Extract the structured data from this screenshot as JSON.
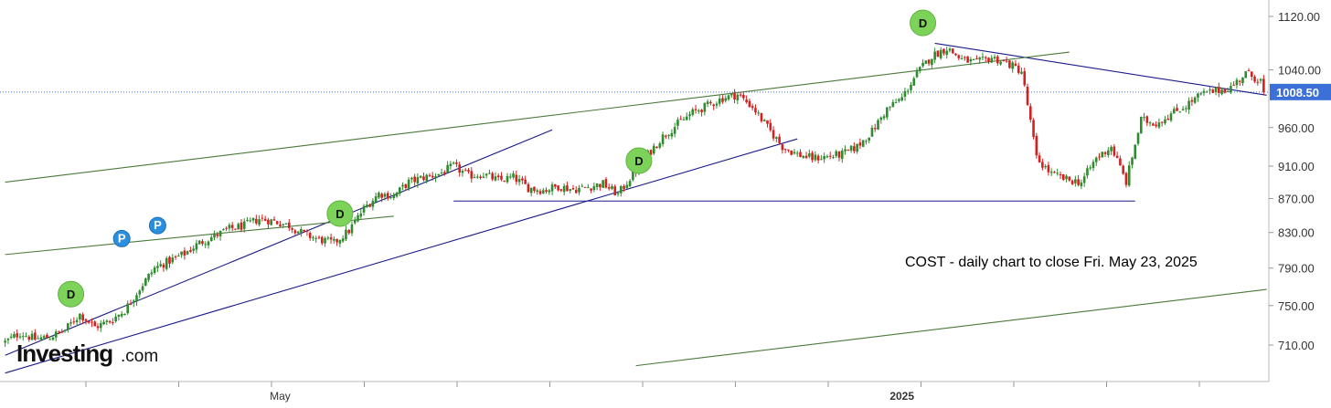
{
  "chart_data": {
    "type": "candlestick",
    "title": "",
    "annotation": "COST - daily chart to close Fri. May 23, 2025",
    "watermark": {
      "main": "Investing",
      "sub": ".com"
    },
    "y_axis": {
      "ylim": [
        675,
        1140
      ],
      "ticks": [
        710,
        750,
        790,
        830,
        870,
        910,
        960,
        1040,
        1120
      ],
      "tick_labels": [
        "710.00",
        "750.00",
        "790.00",
        "830.00",
        "870.00",
        "910.00",
        "960.00",
        "1040.00",
        "1120.00"
      ],
      "scale": "log"
    },
    "x_axis": {
      "labels": [
        {
          "text": "May",
          "bar": 92
        },
        {
          "text": "2025",
          "bar": 300
        }
      ]
    },
    "current_price": {
      "value": 1008.5,
      "label": "1008.50",
      "color": "#3d6fd8"
    },
    "colors": {
      "up": "#2e8b2e",
      "down": "#d62020",
      "trend_blue": "#1b1b8a",
      "channel_green": "#4a7a3a",
      "marker_d": "#7dd35a",
      "marker_p": "#2b8fe0"
    },
    "candle_anchors": [
      [
        0,
        713
      ],
      [
        5,
        722
      ],
      [
        10,
        716
      ],
      [
        15,
        718
      ],
      [
        20,
        725
      ],
      [
        25,
        741
      ],
      [
        30,
        728
      ],
      [
        35,
        734
      ],
      [
        40,
        745
      ],
      [
        45,
        768
      ],
      [
        50,
        790
      ],
      [
        55,
        798
      ],
      [
        60,
        806
      ],
      [
        65,
        818
      ],
      [
        70,
        826
      ],
      [
        75,
        834
      ],
      [
        80,
        838
      ],
      [
        85,
        846
      ],
      [
        90,
        843
      ],
      [
        95,
        838
      ],
      [
        100,
        828
      ],
      [
        105,
        822
      ],
      [
        110,
        818
      ],
      [
        115,
        832
      ],
      [
        120,
        858
      ],
      [
        125,
        876
      ],
      [
        130,
        873
      ],
      [
        135,
        890
      ],
      [
        140,
        896
      ],
      [
        145,
        900
      ],
      [
        150,
        910
      ],
      [
        155,
        898
      ],
      [
        160,
        900
      ],
      [
        165,
        892
      ],
      [
        170,
        896
      ],
      [
        175,
        883
      ],
      [
        180,
        880
      ],
      [
        185,
        885
      ],
      [
        190,
        881
      ],
      [
        195,
        884
      ],
      [
        200,
        888
      ],
      [
        205,
        875
      ],
      [
        210,
        900
      ],
      [
        215,
        925
      ],
      [
        220,
        948
      ],
      [
        225,
        965
      ],
      [
        230,
        980
      ],
      [
        235,
        990
      ],
      [
        240,
        1000
      ],
      [
        245,
        1005
      ],
      [
        250,
        988
      ],
      [
        255,
        960
      ],
      [
        260,
        935
      ],
      [
        265,
        925
      ],
      [
        270,
        920
      ],
      [
        275,
        922
      ],
      [
        280,
        925
      ],
      [
        285,
        935
      ],
      [
        290,
        955
      ],
      [
        295,
        985
      ],
      [
        300,
        1000
      ],
      [
        305,
        1035
      ],
      [
        310,
        1060
      ],
      [
        315,
        1072
      ],
      [
        320,
        1055
      ],
      [
        325,
        1050
      ],
      [
        330,
        1058
      ],
      [
        335,
        1050
      ],
      [
        340,
        1038
      ],
      [
        345,
        920
      ],
      [
        350,
        900
      ],
      [
        355,
        893
      ],
      [
        360,
        890
      ],
      [
        365,
        920
      ],
      [
        370,
        935
      ],
      [
        375,
        890
      ],
      [
        380,
        970
      ],
      [
        385,
        966
      ],
      [
        390,
        978
      ],
      [
        395,
        990
      ],
      [
        400,
        1005
      ],
      [
        405,
        1010
      ],
      [
        410,
        1015
      ],
      [
        415,
        1035
      ],
      [
        420,
        1025
      ],
      [
        421,
        1008.5
      ]
    ],
    "bars_count": 422,
    "lines": [
      {
        "name": "",
        "color": "#1b1b8a",
        "from": [
          0,
          700
        ],
        "to": [
          183,
          957
        ]
      },
      {
        "name": "",
        "color": "#1b1b8a",
        "from": [
          0,
          683
        ],
        "to": [
          265,
          945
        ]
      },
      {
        "name": "",
        "color": "#1b1b8a",
        "from": [
          150,
          867
        ],
        "to": [
          378,
          867
        ]
      },
      {
        "name": "",
        "color": "#1b1b8a",
        "from": [
          311,
          1079
        ],
        "to": [
          422,
          1004
        ]
      },
      {
        "name": "",
        "color": "#4a7a3a",
        "from": [
          0,
          890
        ],
        "to": [
          356,
          1066
        ]
      },
      {
        "name": "",
        "color": "#4a7a3a",
        "from": [
          0,
          805
        ],
        "to": [
          130,
          849
        ]
      },
      {
        "name": "",
        "color": "#4a7a3a",
        "from": [
          211,
          690
        ],
        "to": [
          422,
          767
        ]
      }
    ],
    "markers": [
      {
        "type": "D",
        "bar": 22,
        "price": 762
      },
      {
        "type": "P",
        "bar": 39,
        "price": 823
      },
      {
        "type": "P",
        "bar": 51,
        "price": 838
      },
      {
        "type": "D",
        "bar": 112,
        "price": 852
      },
      {
        "type": "D",
        "bar": 212,
        "price": 917
      },
      {
        "type": "D",
        "bar": 307,
        "price": 1110
      }
    ]
  }
}
